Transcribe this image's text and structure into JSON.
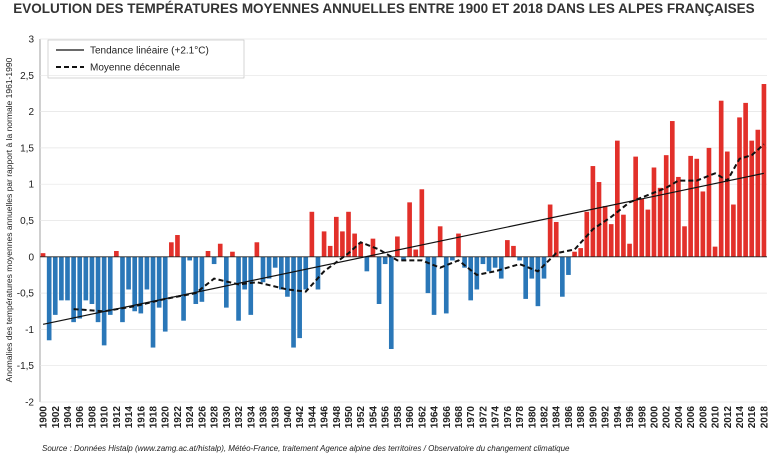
{
  "chart_data": {
    "type": "bar",
    "title": "EVOLUTION DES TEMPÉRATURES MOYENNES ANNUELLES ENTRE 1900 ET 2018 DANS LES ALPES FRANÇAISES",
    "y_label": "Anomalies des températures moyennes annuelles par rapport à la normale 1961-1990",
    "source": "Source : Données Histalp (www.zamg.ac.at/histalp), Météo-France, traitement Agence alpine des territoires / Observatoire du changement climatique",
    "categories": [
      1900,
      1901,
      1902,
      1903,
      1904,
      1905,
      1906,
      1907,
      1908,
      1909,
      1910,
      1911,
      1912,
      1913,
      1914,
      1915,
      1916,
      1917,
      1918,
      1919,
      1920,
      1921,
      1922,
      1923,
      1924,
      1925,
      1926,
      1927,
      1928,
      1929,
      1930,
      1931,
      1932,
      1933,
      1934,
      1935,
      1936,
      1937,
      1938,
      1939,
      1940,
      1941,
      1942,
      1943,
      1944,
      1945,
      1946,
      1947,
      1948,
      1949,
      1950,
      1951,
      1952,
      1953,
      1954,
      1955,
      1956,
      1957,
      1958,
      1959,
      1960,
      1961,
      1962,
      1963,
      1964,
      1965,
      1966,
      1967,
      1968,
      1969,
      1970,
      1971,
      1972,
      1973,
      1974,
      1975,
      1976,
      1977,
      1978,
      1979,
      1980,
      1981,
      1982,
      1983,
      1984,
      1985,
      1986,
      1987,
      1988,
      1989,
      1990,
      1991,
      1992,
      1993,
      1994,
      1995,
      1996,
      1997,
      1998,
      1999,
      2000,
      2001,
      2002,
      2003,
      2004,
      2005,
      2006,
      2007,
      2008,
      2009,
      2010,
      2011,
      2012,
      2013,
      2014,
      2015,
      2016,
      2017,
      2018
    ],
    "values": [
      0.05,
      -1.15,
      -0.8,
      -0.6,
      -0.6,
      -0.9,
      -0.85,
      -0.6,
      -0.65,
      -0.9,
      -1.22,
      -0.8,
      0.08,
      -0.9,
      -0.45,
      -0.75,
      -0.78,
      -0.45,
      -1.25,
      -0.7,
      -1.03,
      0.2,
      0.3,
      -0.88,
      -0.05,
      -0.65,
      -0.62,
      0.08,
      -0.1,
      0.18,
      -0.7,
      0.07,
      -0.88,
      -0.45,
      -0.8,
      0.2,
      -0.35,
      -0.3,
      -0.15,
      -0.45,
      -0.55,
      -1.25,
      -1.12,
      -0.45,
      0.62,
      -0.45,
      0.35,
      0.15,
      0.55,
      0.35,
      0.62,
      0.32,
      0.2,
      -0.2,
      0.25,
      -0.65,
      -0.1,
      -1.27,
      0.28,
      -0.05,
      0.75,
      0.1,
      0.93,
      -0.5,
      -0.8,
      0.42,
      -0.78,
      -0.05,
      0.32,
      -0.15,
      -0.6,
      -0.45,
      -0.1,
      -0.2,
      -0.15,
      -0.3,
      0.23,
      0.15,
      -0.05,
      -0.58,
      -0.3,
      -0.68,
      -0.3,
      0.72,
      0.48,
      -0.55,
      -0.25,
      0.07,
      0.12,
      0.62,
      1.25,
      1.03,
      0.7,
      0.45,
      1.6,
      0.58,
      0.18,
      1.38,
      0.8,
      0.65,
      1.23,
      0.95,
      1.4,
      1.87,
      1.1,
      0.42,
      1.39,
      1.35,
      0.9,
      1.5,
      0.14,
      2.15,
      1.45,
      0.72,
      1.92,
      2.12,
      1.6,
      1.75,
      2.38
    ],
    "positive_color": "#e2302a",
    "negative_color": "#2a77b8",
    "series": [
      {
        "name": "Tendance linéaire (+2.1°C)",
        "type": "line",
        "style": "solid",
        "color": "#111111",
        "x": [
          1900,
          2018
        ],
        "values": [
          -0.93,
          1.15
        ]
      },
      {
        "name": "Moyenne décennale",
        "type": "line",
        "style": "dashed",
        "color": "#111111",
        "x": [
          1905,
          1910,
          1915,
          1920,
          1925,
          1928,
          1932,
          1935,
          1940,
          1943,
          1946,
          1950,
          1952,
          1955,
          1958,
          1962,
          1965,
          1968,
          1971,
          1974,
          1978,
          1981,
          1984,
          1987,
          1990,
          1993,
          1996,
          1999,
          2002,
          2004,
          2007,
          2010,
          2012,
          2014,
          2016,
          2018
        ],
        "values": [
          -0.72,
          -0.75,
          -0.68,
          -0.58,
          -0.5,
          -0.3,
          -0.38,
          -0.35,
          -0.45,
          -0.48,
          -0.2,
          0.05,
          0.2,
          0.1,
          -0.05,
          -0.05,
          -0.15,
          -0.05,
          -0.25,
          -0.2,
          -0.1,
          -0.2,
          0.05,
          0.1,
          0.38,
          0.55,
          0.75,
          0.85,
          0.95,
          1.05,
          1.05,
          1.15,
          1.05,
          1.35,
          1.4,
          1.55
        ]
      }
    ],
    "ylim": [
      -2,
      3
    ],
    "yticks": [
      -2,
      {
        "value": -1.5,
        "label": "-1,5"
      },
      -1,
      {
        "value": -0.5,
        "label": "-0,5"
      },
      0,
      {
        "value": 0.5,
        "label": "0,5"
      },
      1,
      {
        "value": 1.5,
        "label": "1,5"
      },
      2,
      {
        "value": 2.5,
        "label": "2,5"
      },
      3
    ],
    "grid": true
  }
}
